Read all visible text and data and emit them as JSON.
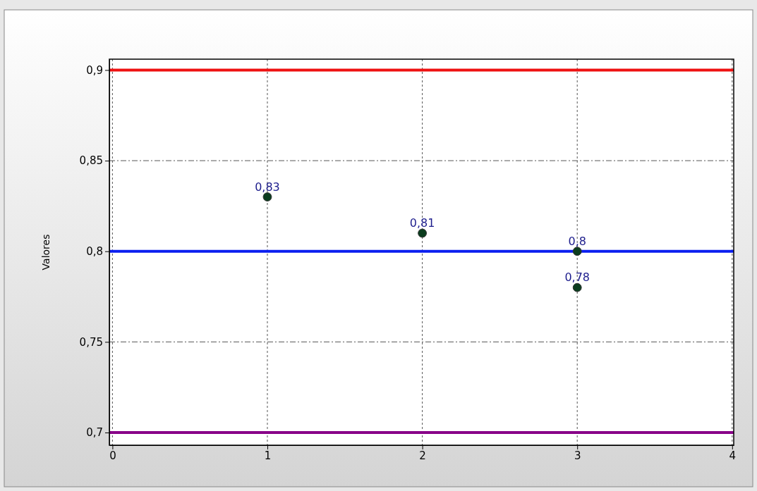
{
  "chart_data": {
    "type": "scatter",
    "ylabel": "Valores",
    "x": [
      1,
      2,
      3,
      3
    ],
    "series": [
      {
        "color": "#0b3d1e",
        "values": [
          0.83,
          0.81,
          0.8,
          0.78
        ],
        "value_labels": [
          "0,83",
          "0,81",
          "0,8",
          "0,78"
        ]
      }
    ],
    "marker": "circle",
    "xlim": [
      -0.02,
      4.01
    ],
    "xticks": [
      0,
      1,
      2,
      3,
      4
    ],
    "ylim": [
      0.693,
      0.906
    ],
    "yticks": [
      {
        "value": 0.7,
        "label": "0,7"
      },
      {
        "value": 0.75,
        "label": "0,75"
      },
      {
        "value": 0.8,
        "label": "0,8"
      },
      {
        "value": 0.85,
        "label": "0,85"
      },
      {
        "value": 0.9,
        "label": "0,9"
      }
    ],
    "grid": true,
    "ref_lines": [
      {
        "axis": "y",
        "value": 0.9,
        "color": "#ee1111"
      },
      {
        "axis": "y",
        "value": 0.8,
        "color": "#0a1ef0"
      },
      {
        "axis": "y",
        "value": 0.7,
        "color": "#880088"
      }
    ]
  }
}
